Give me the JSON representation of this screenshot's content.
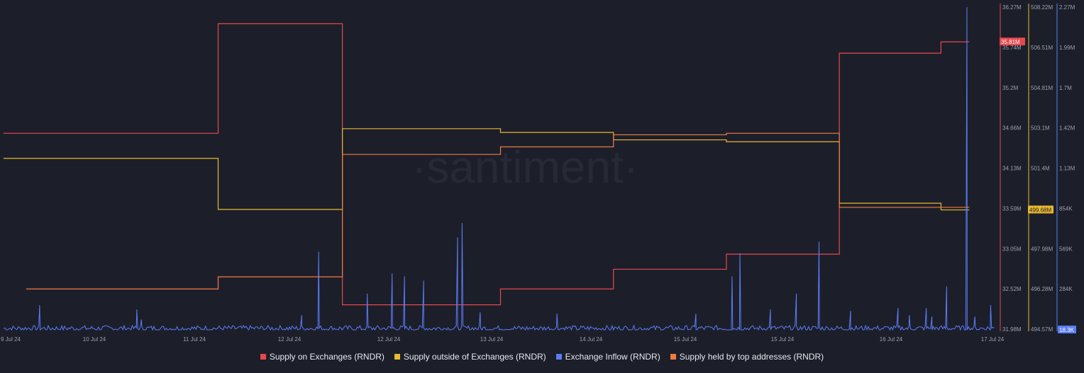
{
  "watermark": "·santiment·",
  "chart_data": {
    "type": "line",
    "x_ticks": [
      "9 Jul 24",
      "10 Jul 24",
      "11 Jul 24",
      "12 Jul 24",
      "12 Jul 24",
      "13 Jul 24",
      "14 Jul 24",
      "15 Jul 24",
      "15 Jul 24",
      "16 Jul 24",
      "17 Jul 24"
    ],
    "axes": [
      {
        "id": "supply_on_exchanges",
        "color": "#e5484d",
        "ticks": [
          "36.27M",
          "35.74M",
          "35.2M",
          "34.66M",
          "34.13M",
          "33.59M",
          "33.05M",
          "32.52M",
          "31.98M"
        ],
        "min": 31.98,
        "max": 36.27,
        "badge": "35.81M",
        "badge_value": 35.81
      },
      {
        "id": "supply_outside_exchanges",
        "color": "#e8b830",
        "ticks": [
          "508.22M",
          "506.51M",
          "504.81M",
          "503.1M",
          "501.4M",
          "499.68M",
          "497.98M",
          "496.28M",
          "494.57M"
        ],
        "min": 494.57,
        "max": 508.22,
        "badge": "499.68M",
        "badge_value": 499.68
      },
      {
        "id": "exchange_inflow",
        "color": "#5b7cf5",
        "ticks": [
          "2.27M",
          "1.99M",
          "1.7M",
          "1.42M",
          "1.13M",
          "854K",
          "569K",
          "284K",
          "18.3K"
        ],
        "min": 0.0183,
        "max": 2.27,
        "badge": "18.3K",
        "badge_value": 0.0183
      }
    ],
    "series": [
      {
        "name": "Supply on Exchanges (RNDR)",
        "color": "#e5484d",
        "axis": 0,
        "steps": [
          [
            9.0,
            34.6
          ],
          [
            10.9,
            36.05
          ],
          [
            12.0,
            32.33
          ],
          [
            13.4,
            32.54
          ],
          [
            14.4,
            32.8
          ],
          [
            15.4,
            33.0
          ],
          [
            16.4,
            35.66
          ],
          [
            17.3,
            35.81
          ]
        ],
        "x_end": 17.55
      },
      {
        "name": "Supply outside of Exchanges (RNDR)",
        "color": "#e8b830",
        "axis": 1,
        "steps": [
          [
            9.0,
            501.85
          ],
          [
            10.9,
            499.7
          ],
          [
            12.0,
            503.1
          ],
          [
            13.4,
            502.94
          ],
          [
            14.4,
            502.63
          ],
          [
            15.4,
            502.55
          ],
          [
            16.4,
            499.96
          ],
          [
            17.3,
            499.68
          ]
        ],
        "x_end": 17.55
      },
      {
        "name": "Exchange Inflow (RNDR)",
        "color": "#5b7cf5",
        "axis": 2,
        "spikes": [
          [
            9.32,
            0.2
          ],
          [
            10.18,
            0.17
          ],
          [
            10.22,
            0.1
          ],
          [
            11.64,
            0.13
          ],
          [
            11.79,
            0.57
          ],
          [
            12.22,
            0.28
          ],
          [
            12.44,
            0.42
          ],
          [
            12.55,
            0.4
          ],
          [
            12.72,
            0.37
          ],
          [
            13.02,
            0.67
          ],
          [
            13.06,
            0.77
          ],
          [
            13.22,
            0.15
          ],
          [
            13.9,
            0.14
          ],
          [
            15.13,
            0.14
          ],
          [
            15.45,
            0.4
          ],
          [
            15.52,
            0.56
          ],
          [
            15.79,
            0.17
          ],
          [
            16.02,
            0.28
          ],
          [
            16.22,
            0.64
          ],
          [
            16.5,
            0.16
          ],
          [
            16.92,
            0.18
          ],
          [
            17.02,
            0.13
          ],
          [
            17.17,
            0.18
          ],
          [
            17.22,
            0.12
          ],
          [
            17.35,
            0.33
          ],
          [
            17.53,
            2.27
          ],
          [
            17.6,
            0.12
          ],
          [
            17.74,
            0.2
          ]
        ],
        "x_end": 17.78
      },
      {
        "name": "Supply held by top addresses (RNDR)",
        "color": "#f07b3f",
        "axis": 0,
        "steps": [
          [
            9.2,
            32.54
          ],
          [
            10.9,
            32.7
          ],
          [
            12.0,
            34.32
          ],
          [
            13.4,
            34.42
          ],
          [
            14.4,
            34.58
          ],
          [
            15.4,
            34.6
          ],
          [
            16.4,
            33.62
          ],
          [
            17.3,
            33.62
          ]
        ],
        "x_end": 17.55
      }
    ]
  }
}
